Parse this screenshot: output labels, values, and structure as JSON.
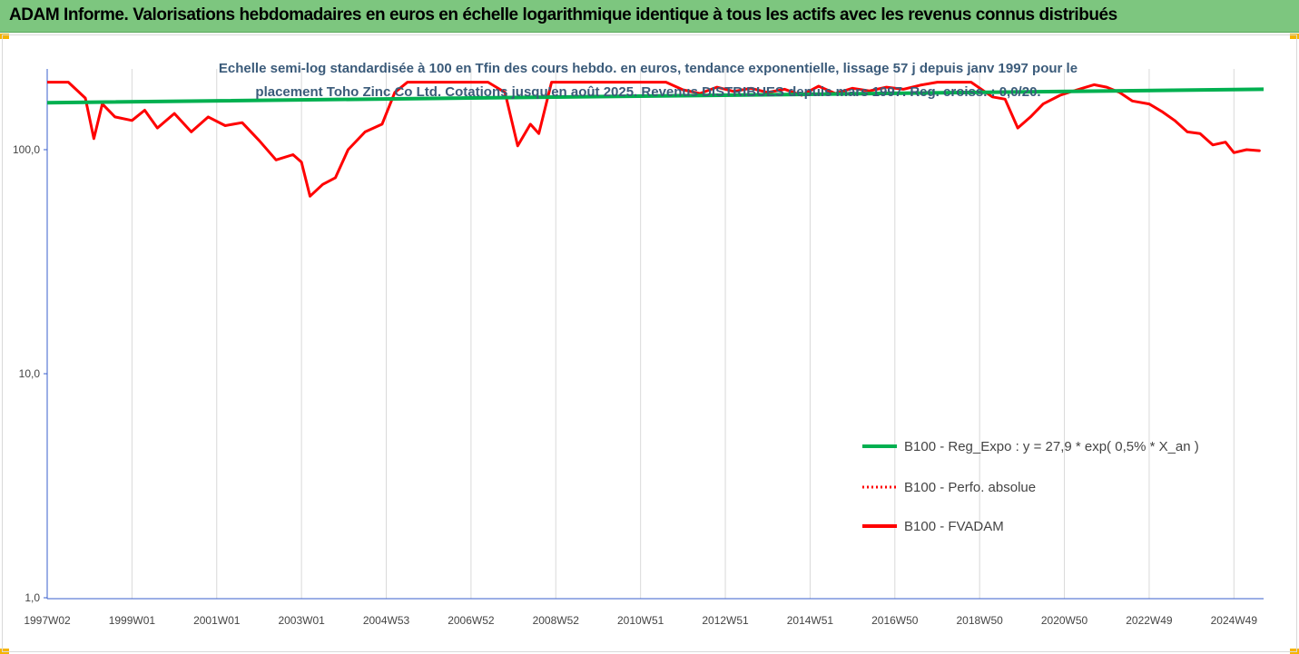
{
  "header": {
    "title": "ADAM Informe. Valorisations hebdomadaires en euros en échelle logarithmique identique à tous les actifs avec les revenus connus distribués"
  },
  "chart_data": {
    "type": "line",
    "subtitle_lines": [
      "Echelle semi-log standardisée à 100 en Tfin des cours hebdo. en euros, tendance exponentielle, lissage 57 j depuis janv 1997 pour le",
      "placement Toho Zinc Co Ltd. Cotations jusqu'en août 2025. Revenus DISTRIBUES depuis mars 1997. Reg. croiss. : 0,0/20."
    ],
    "y_scale": "log",
    "ylim": [
      1,
      200
    ],
    "y_ticks": [
      {
        "value": 1,
        "label": "1,0"
      },
      {
        "value": 10,
        "label": "10,0"
      },
      {
        "value": 100,
        "label": "100,0"
      }
    ],
    "xlim": [
      1997.0,
      2025.7
    ],
    "x_ticks": [
      {
        "value": 1997.0,
        "label": "1997W02"
      },
      {
        "value": 1999.0,
        "label": "1999W01"
      },
      {
        "value": 2001.0,
        "label": "2001W01"
      },
      {
        "value": 2003.0,
        "label": "2003W01"
      },
      {
        "value": 2005.0,
        "label": "2004W53"
      },
      {
        "value": 2007.0,
        "label": "2006W52"
      },
      {
        "value": 2009.0,
        "label": "2008W52"
      },
      {
        "value": 2011.0,
        "label": "2010W51"
      },
      {
        "value": 2013.0,
        "label": "2012W51"
      },
      {
        "value": 2015.0,
        "label": "2014W51"
      },
      {
        "value": 2017.0,
        "label": "2016W50"
      },
      {
        "value": 2019.0,
        "label": "2018W50"
      },
      {
        "value": 2021.0,
        "label": "2020W50"
      },
      {
        "value": 2023.0,
        "label": "2022W49"
      },
      {
        "value": 2025.0,
        "label": "2024W49"
      }
    ],
    "grid": true,
    "legend_position": "right",
    "series": [
      {
        "name": "B100 - Reg_Expo : y = 27,9 * exp( 0,5% *  X_an )",
        "color": "#00b050",
        "style": "solid",
        "x": [
          1997.0,
          2025.7
        ],
        "y": [
          162,
          186
        ]
      },
      {
        "name": "B100 - Perfo. absolue",
        "color": "#ff0000",
        "style": "dotted",
        "x": [],
        "y": []
      },
      {
        "name": "B100 - FVADAM",
        "color": "#ff0000",
        "style": "solid",
        "x": [
          1997.0,
          1997.5,
          1997.9,
          1998.1,
          1998.3,
          1998.6,
          1999.0,
          1999.3,
          1999.6,
          2000.0,
          2000.4,
          2000.8,
          2001.2,
          2001.6,
          2002.0,
          2002.4,
          2002.8,
          2003.0,
          2003.2,
          2003.5,
          2003.8,
          2004.1,
          2004.5,
          2004.9,
          2005.2,
          2005.5,
          2007.4,
          2007.8,
          2008.1,
          2008.4,
          2008.6,
          2008.9,
          2009.1,
          2009.4,
          2011.6,
          2012.0,
          2012.4,
          2012.8,
          2013.2,
          2013.6,
          2014.0,
          2014.4,
          2014.8,
          2015.2,
          2015.6,
          2016.0,
          2016.4,
          2016.8,
          2017.2,
          2017.6,
          2018.0,
          2018.4,
          2018.8,
          2019.3,
          2019.6,
          2019.9,
          2020.2,
          2020.5,
          2020.9,
          2021.3,
          2021.7,
          2022.0,
          2022.3,
          2022.6,
          2023.0,
          2023.3,
          2023.6,
          2023.9,
          2024.2,
          2024.5,
          2024.8,
          2025.0,
          2025.3,
          2025.6
        ],
        "y": [
          200,
          200,
          170,
          112,
          160,
          140,
          135,
          150,
          125,
          145,
          120,
          140,
          128,
          132,
          110,
          90,
          95,
          88,
          62,
          70,
          75,
          100,
          120,
          130,
          180,
          200,
          200,
          180,
          104,
          130,
          118,
          200,
          200,
          200,
          200,
          185,
          178,
          190,
          182,
          188,
          180,
          186,
          175,
          192,
          178,
          188,
          183,
          190,
          186,
          194,
          200,
          200,
          200,
          172,
          168,
          125,
          140,
          160,
          175,
          185,
          195,
          190,
          180,
          165,
          160,
          148,
          135,
          120,
          118,
          105,
          108,
          97,
          100,
          99
        ]
      }
    ]
  }
}
